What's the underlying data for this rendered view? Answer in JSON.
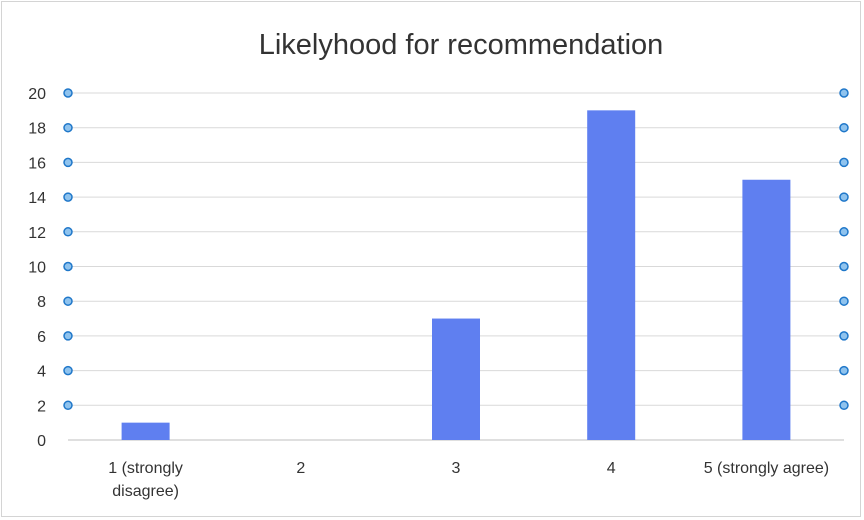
{
  "chart_data": {
    "type": "bar",
    "title": "Likelyhood for recommendation",
    "xlabel": "",
    "ylabel": "",
    "categories": [
      [
        "1 (strongly",
        "disagree)"
      ],
      [
        "2"
      ],
      [
        "3"
      ],
      [
        "4"
      ],
      [
        "5 (strongly agree)"
      ]
    ],
    "values": [
      1,
      0,
      7,
      19,
      15
    ],
    "ylim": [
      0,
      20
    ],
    "yticks": [
      "0",
      "2",
      "4",
      "6",
      "8",
      "10",
      "12",
      "14",
      "16",
      "18",
      "20"
    ],
    "grid": true,
    "legend": "none",
    "bar_color": "#5f7ff0",
    "handle_color": "#1f77c9"
  }
}
